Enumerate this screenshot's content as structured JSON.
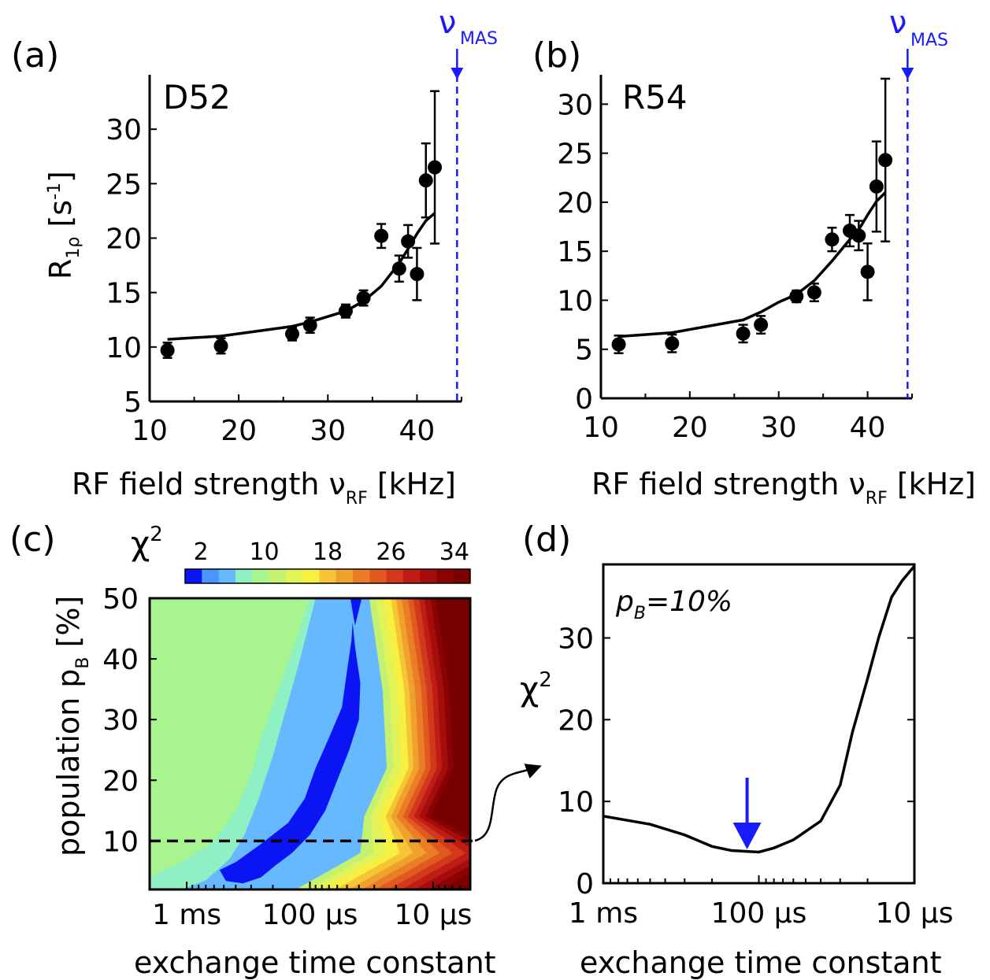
{
  "panels": {
    "a": {
      "letter": "(a)",
      "label": "D52"
    },
    "b": {
      "letter": "(b)",
      "label": "R54"
    },
    "c": {
      "letter": "(c)"
    },
    "d": {
      "letter": "(d)",
      "annotation_p": "p",
      "annotation_sub": "B",
      "annotation_rest": "=10%"
    }
  },
  "mas": {
    "symbol": "ν",
    "subscript": "MAS",
    "value_khz": 44.5,
    "color": "#1a1aff"
  },
  "axes": {
    "rf_x_main": "RF field strength ν",
    "rf_x_sub": "RF",
    "rf_x_unit": " [kHz]",
    "r1rho_main": "R",
    "r1rho_sub": "1ρ",
    "r1rho_unit": " [s",
    "r1rho_sup": "-1",
    "r1rho_close": "]",
    "exchange_x": "exchange time constant",
    "population_main": "population p",
    "population_sub": "B",
    "population_unit": " [%]",
    "chi": "χ",
    "chi_sup": "2"
  },
  "chart_data": [
    {
      "id": "a",
      "type": "scatter",
      "title": "D52",
      "xlabel": "RF field strength ν_RF [kHz]",
      "ylabel": "R_1ρ [s^-1]",
      "xlim": [
        10,
        45
      ],
      "ylim": [
        5,
        35
      ],
      "xticks": [
        10,
        20,
        30,
        40
      ],
      "yticks": [
        5,
        10,
        15,
        20,
        25,
        30
      ],
      "points": [
        {
          "x": 12,
          "y": 9.7,
          "err": 0.7
        },
        {
          "x": 18,
          "y": 10.1,
          "err": 0.7
        },
        {
          "x": 26,
          "y": 11.2,
          "err": 0.6
        },
        {
          "x": 28,
          "y": 12.0,
          "err": 0.7
        },
        {
          "x": 32,
          "y": 13.3,
          "err": 0.6
        },
        {
          "x": 34,
          "y": 14.5,
          "err": 0.7
        },
        {
          "x": 36,
          "y": 20.2,
          "err": 1.1
        },
        {
          "x": 38,
          "y": 17.2,
          "err": 1.2
        },
        {
          "x": 39,
          "y": 19.7,
          "err": 1.5
        },
        {
          "x": 40,
          "y": 16.7,
          "err": 2.4
        },
        {
          "x": 41,
          "y": 25.3,
          "err": 3.4
        },
        {
          "x": 42,
          "y": 26.5,
          "err": 7.0
        }
      ],
      "fit": [
        [
          12,
          10.7
        ],
        [
          18,
          11.0
        ],
        [
          26,
          11.9
        ],
        [
          28,
          12.3
        ],
        [
          32,
          13.3
        ],
        [
          34,
          14.2
        ],
        [
          36,
          15.6
        ],
        [
          38,
          17.7
        ],
        [
          39,
          19.0
        ],
        [
          40,
          20.4
        ],
        [
          41,
          21.6
        ],
        [
          42,
          22.3
        ]
      ]
    },
    {
      "id": "b",
      "type": "scatter",
      "title": "R54",
      "xlabel": "RF field strength ν_RF [kHz]",
      "ylabel": "",
      "xlim": [
        10,
        45
      ],
      "ylim": [
        0,
        33
      ],
      "xticks": [
        10,
        20,
        30,
        40
      ],
      "yticks": [
        0,
        5,
        10,
        15,
        20,
        25,
        30
      ],
      "points": [
        {
          "x": 12,
          "y": 5.5,
          "err": 0.9
        },
        {
          "x": 18,
          "y": 5.6,
          "err": 0.9
        },
        {
          "x": 26,
          "y": 6.6,
          "err": 0.9
        },
        {
          "x": 28,
          "y": 7.5,
          "err": 0.9
        },
        {
          "x": 32,
          "y": 10.4,
          "err": 0.6
        },
        {
          "x": 34,
          "y": 10.8,
          "err": 0.9
        },
        {
          "x": 36,
          "y": 16.2,
          "err": 1.2
        },
        {
          "x": 38,
          "y": 17.1,
          "err": 1.6
        },
        {
          "x": 39,
          "y": 16.6,
          "err": 1.5
        },
        {
          "x": 40,
          "y": 12.9,
          "err": 2.9
        },
        {
          "x": 41,
          "y": 21.6,
          "err": 4.6
        },
        {
          "x": 42,
          "y": 24.3,
          "err": 8.3
        }
      ],
      "fit": [
        [
          12,
          6.3
        ],
        [
          18,
          6.7
        ],
        [
          26,
          8.0
        ],
        [
          28,
          8.8
        ],
        [
          30,
          9.8
        ],
        [
          32,
          10.6
        ],
        [
          34,
          12.0
        ],
        [
          36,
          14.0
        ],
        [
          38,
          16.2
        ],
        [
          39,
          17.2
        ],
        [
          40,
          18.7
        ],
        [
          41,
          20.1
        ],
        [
          42,
          21.0
        ]
      ]
    },
    {
      "id": "c",
      "type": "heatmap",
      "xlabel": "exchange time constant",
      "ylabel": "population p_B [%]",
      "x_scale": "log",
      "x_ticklabels": [
        "1 ms",
        "100 µs",
        "10 µs"
      ],
      "x_tick_values_s": [
        0.001,
        0.0001,
        1e-05
      ],
      "xlim_s": [
        0.002,
        5e-06
      ],
      "ylim": [
        2,
        50
      ],
      "yticks": [
        10,
        20,
        30,
        40,
        50
      ],
      "colorbar": {
        "label": "χ²",
        "min": 0,
        "max": 36,
        "tick_values": [
          2,
          10,
          18,
          26,
          34
        ],
        "colors": [
          "#0a14f5",
          "#4c95ff",
          "#66b8ff",
          "#8ff0c4",
          "#a8f48f",
          "#c4f270",
          "#e2f35a",
          "#f8f040",
          "#f5c535",
          "#f0a02c",
          "#ea7d26",
          "#e05a20",
          "#d2381c",
          "#c01c16",
          "#a50d0d",
          "#8a0303",
          "#7a0000"
        ]
      },
      "cut_line_pB": 10,
      "regions": [
        {
          "chi2": "2–4",
          "color": "#0a14f5",
          "boundary": [
            [
              0.00054,
              5.2
            ],
            [
              0.0004,
              6.5
            ],
            [
              0.00025,
              9.5
            ],
            [
              0.00015,
              13
            ],
            [
              0.00011,
              17
            ],
            [
              9e-05,
              22
            ],
            [
              7e-05,
              27
            ],
            [
              5.5e-05,
              32
            ],
            [
              5e-05,
              38
            ],
            [
              4.6e-05,
              43
            ],
            [
              4.5e-05,
              46
            ],
            [
              4.3e-05,
              42
            ],
            [
              3.9e-05,
              36
            ],
            [
              4e-05,
              30
            ],
            [
              4.8e-05,
              25
            ],
            [
              6e-05,
              20
            ],
            [
              7.5e-05,
              15
            ],
            [
              0.0001,
              11
            ],
            [
              0.00014,
              8
            ],
            [
              0.00019,
              6
            ],
            [
              0.00025,
              4
            ],
            [
              0.00035,
              3
            ],
            [
              0.00048,
              3.4
            ]
          ]
        },
        {
          "chi2": "26",
          "color": "#000000",
          "boundary": []
        }
      ]
    },
    {
      "id": "d",
      "type": "line",
      "title": "p_B=10%",
      "xlabel": "exchange time constant",
      "ylabel": "χ²",
      "x_scale": "log",
      "x_ticklabels": [
        "1 ms",
        "100 µs",
        "10 µs"
      ],
      "x_tick_values_s": [
        0.001,
        0.0001,
        1e-05
      ],
      "xlim_s": [
        0.001,
        1e-05
      ],
      "ylim": [
        0,
        39
      ],
      "yticks": [
        0,
        10,
        20,
        30
      ],
      "x_s": [
        0.001,
        0.0005,
        0.0003,
        0.0002,
        0.00015,
        0.0001,
        8e-05,
        6e-05,
        4e-05,
        3e-05,
        2.5e-05,
        2e-05,
        1.7e-05,
        1.4e-05,
        1.2e-05,
        1e-05
      ],
      "y": [
        8.2,
        7.2,
        5.9,
        4.5,
        4.0,
        3.8,
        4.3,
        5.3,
        7.6,
        12.0,
        18.5,
        25.0,
        30.0,
        35.0,
        37.0,
        38.8
      ],
      "min_arrow_s": 0.000119,
      "arrow_color": "#1a1aff"
    }
  ]
}
